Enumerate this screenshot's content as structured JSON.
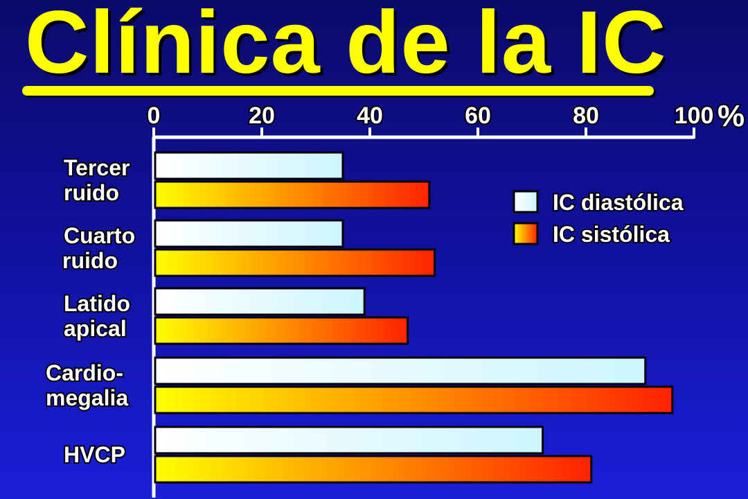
{
  "title": "Clínica de la IC",
  "chart_data": {
    "type": "bar",
    "orientation": "horizontal",
    "x_unit": "%",
    "xlim": [
      0,
      100
    ],
    "x_ticks": [
      "0",
      "20",
      "40",
      "60",
      "80",
      "100"
    ],
    "categories": [
      [
        "Tercer",
        "ruido"
      ],
      [
        "Cuarto",
        "ruido"
      ],
      [
        "Latido",
        "apical"
      ],
      [
        "Cardio-",
        "megalia"
      ],
      [
        "HVCP"
      ]
    ],
    "series": [
      {
        "name": "IC diastólica",
        "values": [
          35,
          35,
          39,
          91,
          72
        ]
      },
      {
        "name": "IC sistólica",
        "values": [
          51,
          52,
          47,
          96,
          81
        ]
      }
    ],
    "colors": {
      "diastolic": [
        "#ffffff",
        "#ccf5ff"
      ],
      "systolic": [
        "#ffff00",
        "#ff2200"
      ],
      "axis": "#ffffff"
    },
    "legend_position": "right"
  }
}
